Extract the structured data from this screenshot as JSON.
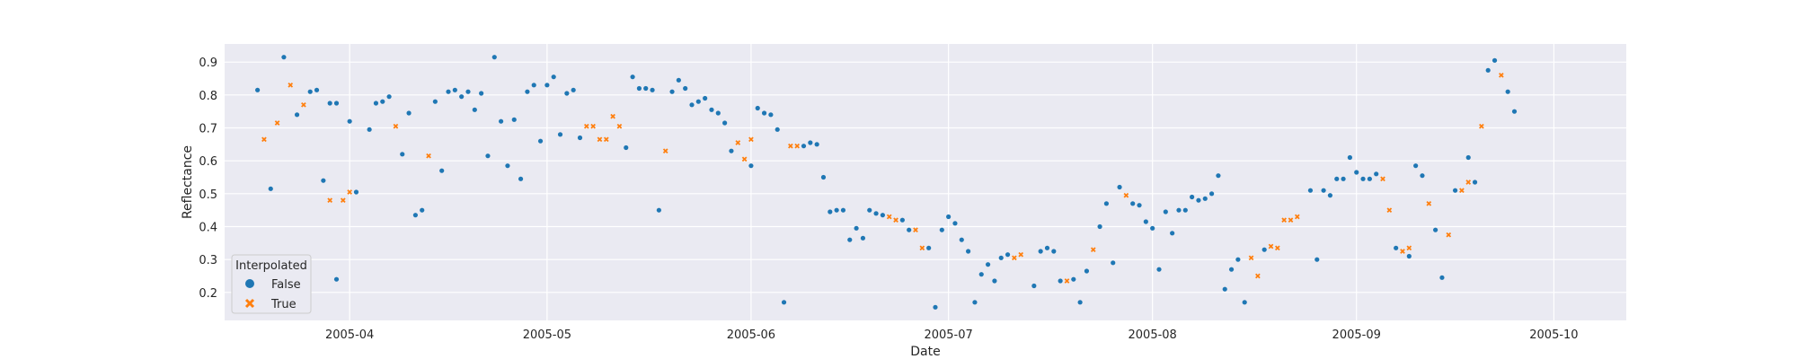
{
  "chart_data": {
    "type": "scatter",
    "title": "",
    "xlabel": "Date",
    "ylabel": "Reflectance",
    "x_ticks": [
      "2005-04",
      "2005-05",
      "2005-06",
      "2005-07",
      "2005-08",
      "2005-09",
      "2005-10"
    ],
    "y_ticks": [
      "0.2",
      "0.3",
      "0.4",
      "0.5",
      "0.6",
      "0.7",
      "0.8",
      "0.9"
    ],
    "xlim": [
      "2005-03-13",
      "2005-10-12"
    ],
    "ylim": [
      0.115,
      0.955
    ],
    "grid": true,
    "legend": {
      "title": "Interpolated",
      "placement": "lower-left",
      "entries": [
        "False",
        "True"
      ]
    },
    "colors": {
      "False": "#1f77b4",
      "True": "#ff7f0e",
      "background": "#eaeaf2",
      "grid": "#ffffff"
    },
    "series": [
      {
        "name": "False",
        "marker": "circle",
        "points": [
          [
            "2005-03-18",
            0.815
          ],
          [
            "2005-03-20",
            0.515
          ],
          [
            "2005-03-22",
            0.915
          ],
          [
            "2005-03-24",
            0.74
          ],
          [
            "2005-03-26",
            0.81
          ],
          [
            "2005-03-27",
            0.815
          ],
          [
            "2005-03-28",
            0.54
          ],
          [
            "2005-03-29",
            0.775
          ],
          [
            "2005-03-30",
            0.775
          ],
          [
            "2005-04-01",
            0.72
          ],
          [
            "2005-03-30",
            0.24
          ],
          [
            "2005-04-02",
            0.505
          ],
          [
            "2005-04-04",
            0.695
          ],
          [
            "2005-04-05",
            0.775
          ],
          [
            "2005-04-06",
            0.78
          ],
          [
            "2005-04-07",
            0.795
          ],
          [
            "2005-04-09",
            0.62
          ],
          [
            "2005-04-10",
            0.745
          ],
          [
            "2005-04-11",
            0.435
          ],
          [
            "2005-04-12",
            0.45
          ],
          [
            "2005-04-14",
            0.78
          ],
          [
            "2005-04-15",
            0.57
          ],
          [
            "2005-04-16",
            0.81
          ],
          [
            "2005-04-17",
            0.815
          ],
          [
            "2005-04-18",
            0.795
          ],
          [
            "2005-04-19",
            0.81
          ],
          [
            "2005-04-20",
            0.755
          ],
          [
            "2005-04-21",
            0.805
          ],
          [
            "2005-04-22",
            0.615
          ],
          [
            "2005-04-23",
            0.915
          ],
          [
            "2005-04-24",
            0.72
          ],
          [
            "2005-04-25",
            0.585
          ],
          [
            "2005-04-26",
            0.725
          ],
          [
            "2005-04-27",
            0.545
          ],
          [
            "2005-04-28",
            0.81
          ],
          [
            "2005-04-29",
            0.83
          ],
          [
            "2005-04-30",
            0.66
          ],
          [
            "2005-05-01",
            0.83
          ],
          [
            "2005-05-02",
            0.855
          ],
          [
            "2005-05-03",
            0.68
          ],
          [
            "2005-05-04",
            0.805
          ],
          [
            "2005-05-05",
            0.815
          ],
          [
            "2005-05-06",
            0.67
          ],
          [
            "2005-05-13",
            0.64
          ],
          [
            "2005-05-14",
            0.855
          ],
          [
            "2005-05-15",
            0.82
          ],
          [
            "2005-05-16",
            0.82
          ],
          [
            "2005-05-17",
            0.815
          ],
          [
            "2005-05-18",
            0.45
          ],
          [
            "2005-05-20",
            0.81
          ],
          [
            "2005-05-21",
            0.845
          ],
          [
            "2005-05-22",
            0.82
          ],
          [
            "2005-05-23",
            0.77
          ],
          [
            "2005-05-24",
            0.78
          ],
          [
            "2005-05-25",
            0.79
          ],
          [
            "2005-05-26",
            0.755
          ],
          [
            "2005-05-27",
            0.745
          ],
          [
            "2005-05-28",
            0.715
          ],
          [
            "2005-05-29",
            0.63
          ],
          [
            "2005-06-01",
            0.585
          ],
          [
            "2005-06-02",
            0.76
          ],
          [
            "2005-06-03",
            0.745
          ],
          [
            "2005-06-04",
            0.74
          ],
          [
            "2005-06-05",
            0.695
          ],
          [
            "2005-06-06",
            0.17
          ],
          [
            "2005-06-09",
            0.645
          ],
          [
            "2005-06-10",
            0.655
          ],
          [
            "2005-06-11",
            0.65
          ],
          [
            "2005-06-12",
            0.55
          ],
          [
            "2005-06-13",
            0.445
          ],
          [
            "2005-06-14",
            0.45
          ],
          [
            "2005-06-15",
            0.45
          ],
          [
            "2005-06-16",
            0.36
          ],
          [
            "2005-06-17",
            0.395
          ],
          [
            "2005-06-18",
            0.365
          ],
          [
            "2005-06-19",
            0.45
          ],
          [
            "2005-06-20",
            0.44
          ],
          [
            "2005-06-21",
            0.435
          ],
          [
            "2005-06-24",
            0.42
          ],
          [
            "2005-06-25",
            0.39
          ],
          [
            "2005-06-28",
            0.335
          ],
          [
            "2005-06-29",
            0.155
          ],
          [
            "2005-06-30",
            0.39
          ],
          [
            "2005-07-01",
            0.43
          ],
          [
            "2005-07-02",
            0.41
          ],
          [
            "2005-07-03",
            0.36
          ],
          [
            "2005-07-04",
            0.325
          ],
          [
            "2005-07-05",
            0.17
          ],
          [
            "2005-07-06",
            0.255
          ],
          [
            "2005-07-07",
            0.285
          ],
          [
            "2005-07-08",
            0.235
          ],
          [
            "2005-07-09",
            0.305
          ],
          [
            "2005-07-10",
            0.315
          ],
          [
            "2005-07-14",
            0.22
          ],
          [
            "2005-07-15",
            0.325
          ],
          [
            "2005-07-16",
            0.335
          ],
          [
            "2005-07-17",
            0.325
          ],
          [
            "2005-07-18",
            0.235
          ],
          [
            "2005-07-20",
            0.24
          ],
          [
            "2005-07-21",
            0.17
          ],
          [
            "2005-07-22",
            0.265
          ],
          [
            "2005-07-24",
            0.4
          ],
          [
            "2005-07-25",
            0.47
          ],
          [
            "2005-07-26",
            0.29
          ],
          [
            "2005-07-27",
            0.52
          ],
          [
            "2005-07-29",
            0.47
          ],
          [
            "2005-07-30",
            0.465
          ],
          [
            "2005-07-31",
            0.415
          ],
          [
            "2005-08-01",
            0.395
          ],
          [
            "2005-08-02",
            0.27
          ],
          [
            "2005-08-03",
            0.445
          ],
          [
            "2005-08-04",
            0.38
          ],
          [
            "2005-08-05",
            0.45
          ],
          [
            "2005-08-06",
            0.45
          ],
          [
            "2005-08-07",
            0.49
          ],
          [
            "2005-08-08",
            0.48
          ],
          [
            "2005-08-09",
            0.485
          ],
          [
            "2005-08-10",
            0.5
          ],
          [
            "2005-08-11",
            0.555
          ],
          [
            "2005-08-12",
            0.21
          ],
          [
            "2005-08-13",
            0.27
          ],
          [
            "2005-08-14",
            0.3
          ],
          [
            "2005-08-15",
            0.17
          ],
          [
            "2005-08-18",
            0.33
          ],
          [
            "2005-08-25",
            0.51
          ],
          [
            "2005-08-26",
            0.3
          ],
          [
            "2005-08-27",
            0.51
          ],
          [
            "2005-08-28",
            0.495
          ],
          [
            "2005-08-29",
            0.545
          ],
          [
            "2005-08-30",
            0.545
          ],
          [
            "2005-08-31",
            0.61
          ],
          [
            "2005-09-01",
            0.565
          ],
          [
            "2005-09-02",
            0.545
          ],
          [
            "2005-09-03",
            0.545
          ],
          [
            "2005-09-04",
            0.56
          ],
          [
            "2005-09-07",
            0.335
          ],
          [
            "2005-09-09",
            0.31
          ],
          [
            "2005-09-10",
            0.585
          ],
          [
            "2005-09-11",
            0.555
          ],
          [
            "2005-09-13",
            0.39
          ],
          [
            "2005-09-14",
            0.245
          ],
          [
            "2005-09-16",
            0.51
          ],
          [
            "2005-09-18",
            0.61
          ],
          [
            "2005-09-19",
            0.535
          ],
          [
            "2005-09-21",
            0.875
          ],
          [
            "2005-09-22",
            0.905
          ],
          [
            "2005-09-24",
            0.81
          ],
          [
            "2005-09-25",
            0.75
          ]
        ]
      },
      {
        "name": "True",
        "marker": "x",
        "points": [
          [
            "2005-03-19",
            0.665
          ],
          [
            "2005-03-21",
            0.715
          ],
          [
            "2005-03-23",
            0.83
          ],
          [
            "2005-03-25",
            0.77
          ],
          [
            "2005-03-29",
            0.48
          ],
          [
            "2005-03-31",
            0.48
          ],
          [
            "2005-04-01",
            0.505
          ],
          [
            "2005-04-08",
            0.705
          ],
          [
            "2005-04-13",
            0.615
          ],
          [
            "2005-05-07",
            0.705
          ],
          [
            "2005-05-08",
            0.705
          ],
          [
            "2005-05-09",
            0.665
          ],
          [
            "2005-05-10",
            0.665
          ],
          [
            "2005-05-11",
            0.735
          ],
          [
            "2005-05-12",
            0.705
          ],
          [
            "2005-05-19",
            0.63
          ],
          [
            "2005-05-30",
            0.655
          ],
          [
            "2005-05-31",
            0.605
          ],
          [
            "2005-06-01",
            0.665
          ],
          [
            "2005-06-07",
            0.645
          ],
          [
            "2005-06-08",
            0.645
          ],
          [
            "2005-06-22",
            0.43
          ],
          [
            "2005-06-23",
            0.42
          ],
          [
            "2005-06-26",
            0.39
          ],
          [
            "2005-06-27",
            0.335
          ],
          [
            "2005-07-11",
            0.305
          ],
          [
            "2005-07-12",
            0.315
          ],
          [
            "2005-07-19",
            0.235
          ],
          [
            "2005-07-23",
            0.33
          ],
          [
            "2005-07-28",
            0.495
          ],
          [
            "2005-08-16",
            0.305
          ],
          [
            "2005-08-17",
            0.25
          ],
          [
            "2005-08-19",
            0.34
          ],
          [
            "2005-08-20",
            0.335
          ],
          [
            "2005-08-21",
            0.42
          ],
          [
            "2005-08-22",
            0.42
          ],
          [
            "2005-08-23",
            0.43
          ],
          [
            "2005-09-05",
            0.545
          ],
          [
            "2005-09-06",
            0.45
          ],
          [
            "2005-09-08",
            0.325
          ],
          [
            "2005-09-09",
            0.335
          ],
          [
            "2005-09-12",
            0.47
          ],
          [
            "2005-09-15",
            0.375
          ],
          [
            "2005-09-17",
            0.51
          ],
          [
            "2005-09-18",
            0.535
          ],
          [
            "2005-09-20",
            0.705
          ],
          [
            "2005-09-23",
            0.86
          ]
        ]
      }
    ]
  }
}
